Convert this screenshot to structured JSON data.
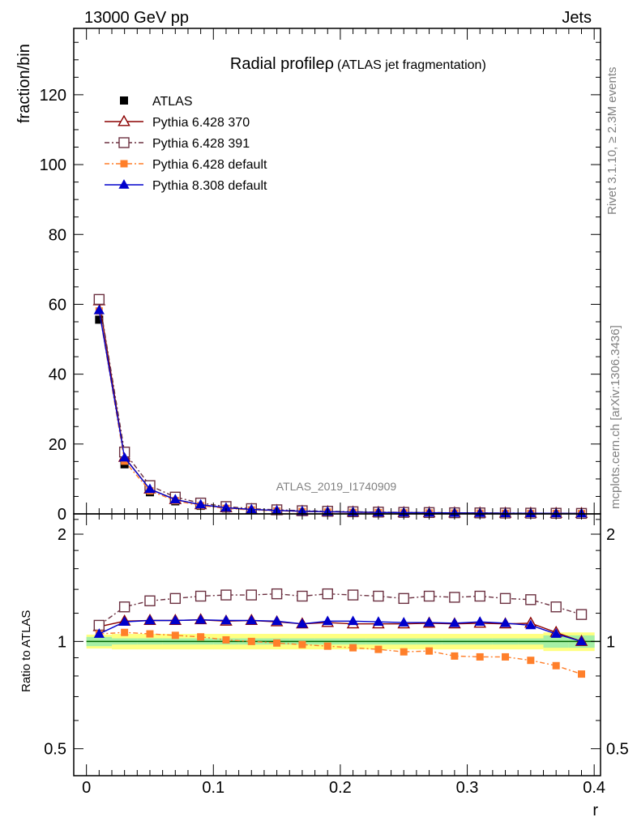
{
  "header": {
    "left": "13000 GeV pp",
    "right": "Jets"
  },
  "side_texts": {
    "rivet": "Rivet 3.1.10, ≥ 2.3M events",
    "mcplots": "mcplots.cern.ch [arXiv:1306.3436]"
  },
  "title": {
    "main": "Radial profileρ",
    "sub": "(ATLAS jet fragmentation)"
  },
  "watermark": "ATLAS_2019_I1740909",
  "colors": {
    "atlas": "#000000",
    "p370": "#8b0000",
    "p391": "#6b3040",
    "p6def": "#ff7f2a",
    "p8def": "#0000cc",
    "band_yellow": "#ffff80",
    "band_green": "#a6f0a6"
  },
  "chart_data": [
    {
      "type": "line",
      "name": "main",
      "xlabel": "r",
      "ylabel": "fraction/bin",
      "xlim": [
        -0.01,
        0.405
      ],
      "ylim": [
        0,
        139
      ],
      "yticks": [
        0,
        20,
        40,
        60,
        80,
        100,
        120
      ],
      "ytick_labels": [
        "0",
        "20",
        "40",
        "60",
        "80",
        "100",
        "120"
      ],
      "legend_placement": "top-left",
      "x": [
        0.01,
        0.03,
        0.05,
        0.07,
        0.09,
        0.11,
        0.13,
        0.15,
        0.17,
        0.19,
        0.21,
        0.23,
        0.25,
        0.27,
        0.29,
        0.31,
        0.33,
        0.35,
        0.37,
        0.39
      ],
      "series": [
        {
          "name": "ATLAS",
          "key": "atlas",
          "marker": "square-filled",
          "values": [
            55.6,
            14.2,
            6.2,
            3.6,
            2.3,
            1.55,
            1.12,
            0.86,
            0.68,
            0.55,
            0.45,
            0.38,
            0.32,
            0.28,
            0.24,
            0.21,
            0.18,
            0.16,
            0.14,
            0.12
          ]
        },
        {
          "name": "Pythia 6.428 370",
          "key": "p370",
          "marker": "triangle-open",
          "dash": "",
          "values": [
            61.0,
            16.2,
            7.1,
            4.1,
            2.6,
            1.75,
            1.27,
            0.97,
            0.75,
            0.62,
            0.51,
            0.43,
            0.36,
            0.32,
            0.27,
            0.24,
            0.2,
            0.18,
            0.15,
            0.12
          ]
        },
        {
          "name": "Pythia 6.428 391",
          "key": "p391",
          "marker": "square-open",
          "dash": "6,3,2,3",
          "values": [
            61.4,
            17.7,
            8.1,
            4.8,
            3.1,
            2.1,
            1.5,
            1.17,
            0.91,
            0.75,
            0.61,
            0.51,
            0.43,
            0.38,
            0.32,
            0.28,
            0.24,
            0.21,
            0.18,
            0.14
          ]
        },
        {
          "name": "Pythia 6.428 default",
          "key": "p6def",
          "marker": "square-small",
          "dash": "6,3,2,3",
          "values": [
            58.1,
            15.1,
            6.6,
            3.8,
            2.35,
            1.57,
            1.13,
            0.86,
            0.67,
            0.54,
            0.43,
            0.36,
            0.3,
            0.26,
            0.22,
            0.19,
            0.16,
            0.14,
            0.12,
            0.1
          ]
        },
        {
          "name": "Pythia 8.308 default",
          "key": "p8def",
          "marker": "triangle-filled",
          "dash": "",
          "values": [
            58.3,
            16.1,
            7.1,
            4.1,
            2.65,
            1.76,
            1.28,
            0.97,
            0.76,
            0.62,
            0.51,
            0.43,
            0.36,
            0.32,
            0.27,
            0.24,
            0.2,
            0.18,
            0.15,
            0.12
          ]
        }
      ]
    },
    {
      "type": "line",
      "name": "ratio",
      "xlabel": "r",
      "ylabel": "Ratio to ATLAS",
      "xlim": [
        -0.01,
        0.405
      ],
      "ylim": [
        0.42,
        2.28
      ],
      "log_y": true,
      "yticks": [
        0.5,
        1,
        2
      ],
      "ytick_labels": [
        "0.5",
        "1",
        "2"
      ],
      "xticks": [
        0,
        0.1,
        0.2,
        0.3,
        0.4
      ],
      "xtick_labels": [
        "0",
        "0.1",
        "0.2",
        "0.3",
        "0.4"
      ],
      "x": [
        0.01,
        0.03,
        0.05,
        0.07,
        0.09,
        0.11,
        0.13,
        0.15,
        0.17,
        0.19,
        0.21,
        0.23,
        0.25,
        0.27,
        0.29,
        0.31,
        0.33,
        0.35,
        0.37,
        0.39
      ],
      "band_outer": [
        0.045,
        0.05,
        0.05,
        0.05,
        0.05,
        0.05,
        0.05,
        0.05,
        0.05,
        0.05,
        0.05,
        0.05,
        0.05,
        0.05,
        0.05,
        0.05,
        0.05,
        0.05,
        0.06,
        0.06
      ],
      "band_inner": [
        0.03,
        0.02,
        0.02,
        0.02,
        0.02,
        0.02,
        0.02,
        0.02,
        0.02,
        0.02,
        0.02,
        0.02,
        0.02,
        0.02,
        0.02,
        0.02,
        0.02,
        0.02,
        0.04,
        0.04
      ],
      "series": [
        {
          "name": "Pythia 6.428 370",
          "key": "p370",
          "marker": "triangle-open",
          "dash": "",
          "values": [
            1.1,
            1.14,
            1.145,
            1.145,
            1.15,
            1.14,
            1.145,
            1.135,
            1.12,
            1.13,
            1.12,
            1.12,
            1.12,
            1.125,
            1.12,
            1.125,
            1.12,
            1.125,
            1.06,
            1.0
          ]
        },
        {
          "name": "Pythia 6.428 391",
          "key": "p391",
          "marker": "square-open",
          "dash": "6,3,2,3",
          "values": [
            1.11,
            1.25,
            1.3,
            1.32,
            1.34,
            1.35,
            1.35,
            1.36,
            1.34,
            1.36,
            1.35,
            1.34,
            1.32,
            1.34,
            1.33,
            1.34,
            1.32,
            1.31,
            1.25,
            1.19
          ]
        },
        {
          "name": "Pythia 6.428 default",
          "key": "p6def",
          "marker": "square-small",
          "dash": "6,3,2,3",
          "values": [
            1.05,
            1.06,
            1.05,
            1.04,
            1.03,
            1.01,
            1.0,
            0.99,
            0.98,
            0.97,
            0.96,
            0.95,
            0.935,
            0.94,
            0.91,
            0.905,
            0.905,
            0.885,
            0.855,
            0.81
          ]
        },
        {
          "name": "Pythia 8.308 default",
          "key": "p8def",
          "marker": "triangle-filled",
          "dash": "",
          "values": [
            1.05,
            1.135,
            1.145,
            1.145,
            1.15,
            1.145,
            1.145,
            1.14,
            1.12,
            1.14,
            1.14,
            1.135,
            1.13,
            1.13,
            1.125,
            1.135,
            1.125,
            1.11,
            1.05,
            1.0
          ]
        }
      ]
    }
  ]
}
